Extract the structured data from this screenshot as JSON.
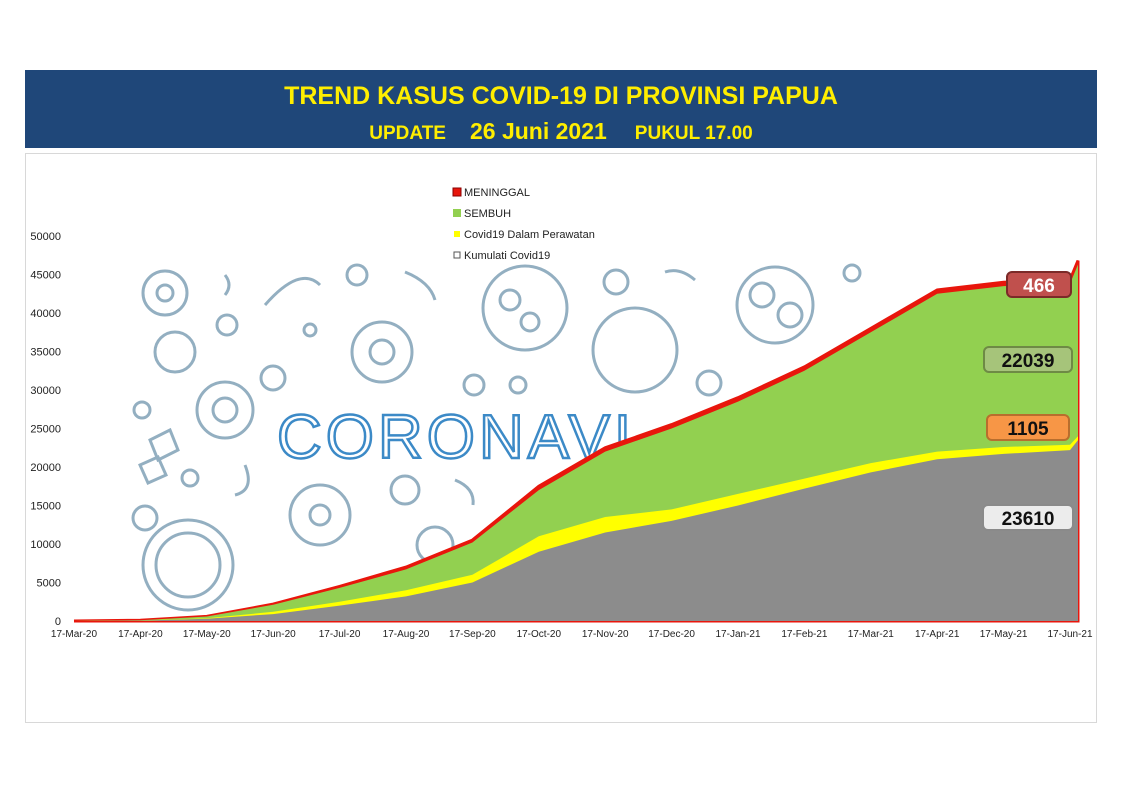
{
  "header": {
    "title": "TREND KASUS COVID-19 DI PROVINSI PAPUA",
    "update_label": "UPDATE",
    "date": "26 Juni 2021",
    "time": "PUKUL 17.00"
  },
  "colors": {
    "banner": "#1f4779",
    "banner_text": "#ffee00",
    "meninggal": "#e8160c",
    "sembuh": "#92d050",
    "perawatan": "#ffff00",
    "kumulati": "#8c8c8c"
  },
  "background_watermark": "CORONAVI",
  "chart_data": {
    "type": "area",
    "ylim": [
      0,
      50000
    ],
    "yticks": [
      "0",
      "5000",
      "10000",
      "15000",
      "20000",
      "25000",
      "30000",
      "35000",
      "40000",
      "45000",
      "50000"
    ],
    "xticks": [
      "17-Mar-20",
      "17-Apr-20",
      "17-May-20",
      "17-Jun-20",
      "17-Jul-20",
      "17-Aug-20",
      "17-Sep-20",
      "17-Oct-20",
      "17-Nov-20",
      "17-Dec-20",
      "17-Jan-21",
      "17-Feb-21",
      "17-Mar-21",
      "17-Apr-21",
      "17-May-21",
      "17-Jun-21"
    ],
    "x": [
      "17-Mar-20",
      "17-Apr-20",
      "17-May-20",
      "17-Jun-20",
      "17-Jul-20",
      "17-Aug-20",
      "17-Sep-20",
      "17-Oct-20",
      "17-Nov-20",
      "17-Dec-20",
      "17-Jan-21",
      "17-Feb-21",
      "17-Mar-21",
      "17-Apr-21",
      "17-May-21",
      "17-Jun-21",
      "26-Jun-21"
    ],
    "legend_position": "top-center",
    "series": [
      {
        "name": "MENINGGAL",
        "values": [
          0,
          100,
          600,
          2200,
          4500,
          7000,
          10500,
          17500,
          22500,
          25500,
          29000,
          33000,
          38000,
          43000,
          44000,
          44300,
          46800
        ]
      },
      {
        "name": "SEMBUH",
        "values": [
          0,
          100,
          580,
          2100,
          4300,
          6700,
          10200,
          17000,
          22000,
          25000,
          28500,
          32500,
          37500,
          42500,
          43500,
          43800,
          46300
        ]
      },
      {
        "name": "Covid19 Dalam Perawatan",
        "values": [
          0,
          60,
          350,
          1200,
          2500,
          4000,
          6000,
          11000,
          13500,
          14500,
          16500,
          18500,
          20500,
          22000,
          22600,
          22900,
          24000
        ]
      },
      {
        "name": "Kumulati Covid19",
        "values": [
          0,
          50,
          300,
          900,
          2000,
          3200,
          5000,
          9000,
          11500,
          13000,
          15000,
          17200,
          19300,
          21000,
          21700,
          22200,
          23500
        ]
      }
    ],
    "callouts": [
      {
        "series": "MENINGGAL",
        "value": "466"
      },
      {
        "series": "SEMBUH",
        "value": "22039"
      },
      {
        "series": "Covid19 Dalam Perawatan",
        "value": "1105"
      },
      {
        "series": "Kumulati Covid19",
        "value": "23610"
      }
    ]
  }
}
